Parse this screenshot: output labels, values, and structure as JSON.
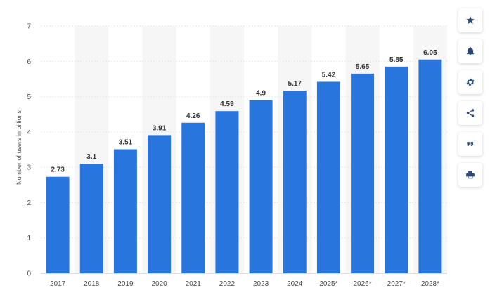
{
  "chart_data": {
    "type": "bar",
    "categories": [
      "2017",
      "2018",
      "2019",
      "2020",
      "2021",
      "2022",
      "2023",
      "2024",
      "2025*",
      "2026*",
      "2027*",
      "2028*"
    ],
    "values": [
      2.73,
      3.1,
      3.51,
      3.91,
      4.26,
      4.59,
      4.9,
      5.17,
      5.42,
      5.65,
      5.85,
      6.05
    ],
    "value_labels": [
      "2.73",
      "3.1",
      "3.51",
      "3.91",
      "4.26",
      "4.59",
      "4.9",
      "5.17",
      "5.42",
      "5.65",
      "5.85",
      "6.05"
    ],
    "title": "",
    "xlabel": "",
    "ylabel": "Number of users in billions",
    "ylim": [
      0,
      7
    ],
    "yticks": [
      "0",
      "1",
      "2",
      "3",
      "4",
      "5",
      "6",
      "7"
    ],
    "grid": true,
    "bar_color": "#2876dd",
    "alt_column_shading": "#f6f6f6",
    "legend": "none"
  },
  "actions": [
    {
      "name": "favorite-button",
      "icon": "star-icon"
    },
    {
      "name": "notification-button",
      "icon": "bell-icon"
    },
    {
      "name": "settings-button",
      "icon": "gear-icon"
    },
    {
      "name": "share-button",
      "icon": "share-icon"
    },
    {
      "name": "cite-button",
      "icon": "quote-icon"
    },
    {
      "name": "print-button",
      "icon": "printer-icon"
    }
  ],
  "colors": {
    "icon": "#2a4a7a"
  }
}
